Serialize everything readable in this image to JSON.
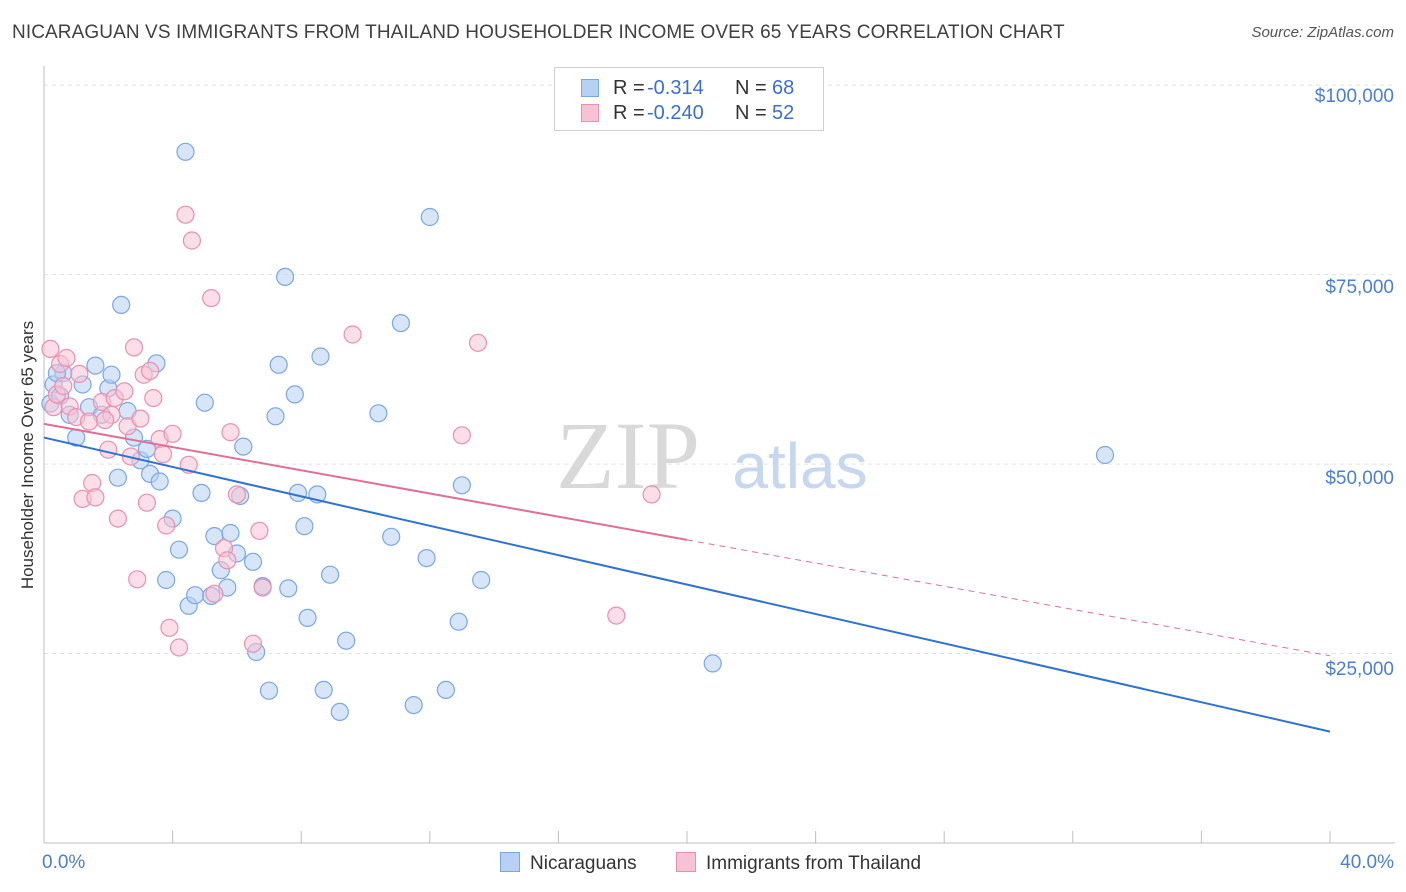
{
  "title": "NICARAGUAN VS IMMIGRANTS FROM THAILAND HOUSEHOLDER INCOME OVER 65 YEARS CORRELATION CHART",
  "source": "Source: ZipAtlas.com",
  "watermark": {
    "zip": "ZIP",
    "atlas": "atlas"
  },
  "stats": [
    {
      "r_label": "R =",
      "r_value": "-0.314",
      "n_label": "N =",
      "n_value": "68"
    },
    {
      "r_label": "R =",
      "r_value": "-0.240",
      "n_label": "N =",
      "n_value": "52"
    }
  ],
  "colors": {
    "blue_fill": "#b7d0f3",
    "blue_stroke": "#7aa7e6",
    "blue_line": "#2f73d1",
    "pink_fill": "#f7c3d4",
    "pink_stroke": "#ec8fae",
    "pink_line": "#e06f95",
    "tick_text": "#4a7fd4"
  },
  "chart_data": {
    "type": "scatter",
    "ylabel": "Householder Income Over 65 years",
    "x_tick_labels": [
      "0.0%",
      "40.0%"
    ],
    "y_tick_labels": [
      "$100,000",
      "$75,000",
      "$50,000",
      "$25,000"
    ],
    "y_ticks": [
      100000,
      75000,
      50000,
      25000
    ],
    "xlim": [
      0,
      40
    ],
    "ylim": [
      0,
      102000
    ],
    "grid": true,
    "legend_position": "bottom-center",
    "series": [
      {
        "name": "Nicaraguans",
        "color": "#7aa7e6",
        "trend": {
          "x": [
            0,
            40
          ],
          "y": [
            53500,
            14700
          ]
        },
        "points": [
          [
            0.2,
            58000
          ],
          [
            0.3,
            60500
          ],
          [
            0.5,
            59000
          ],
          [
            0.6,
            62000
          ],
          [
            0.8,
            56500
          ],
          [
            1.0,
            53500
          ],
          [
            1.2,
            60500
          ],
          [
            1.4,
            57500
          ],
          [
            1.6,
            63000
          ],
          [
            1.8,
            56500
          ],
          [
            2.0,
            60000
          ],
          [
            2.1,
            61800
          ],
          [
            2.3,
            48200
          ],
          [
            2.4,
            71000
          ],
          [
            2.6,
            57000
          ],
          [
            2.8,
            53500
          ],
          [
            3.0,
            50500
          ],
          [
            3.2,
            52000
          ],
          [
            3.3,
            48700
          ],
          [
            3.5,
            63300
          ],
          [
            3.6,
            47700
          ],
          [
            3.8,
            34700
          ],
          [
            4.0,
            42800
          ],
          [
            4.2,
            38700
          ],
          [
            4.4,
            91200
          ],
          [
            4.5,
            31300
          ],
          [
            4.7,
            32700
          ],
          [
            4.9,
            46200
          ],
          [
            5.0,
            58100
          ],
          [
            5.2,
            32600
          ],
          [
            5.3,
            40500
          ],
          [
            5.5,
            36000
          ],
          [
            5.7,
            33700
          ],
          [
            5.8,
            40900
          ],
          [
            6.0,
            38200
          ],
          [
            6.1,
            45800
          ],
          [
            6.2,
            52300
          ],
          [
            6.5,
            37100
          ],
          [
            6.6,
            25200
          ],
          [
            6.8,
            33900
          ],
          [
            7.0,
            20100
          ],
          [
            7.2,
            56300
          ],
          [
            7.3,
            63100
          ],
          [
            7.5,
            74700
          ],
          [
            7.6,
            33600
          ],
          [
            7.8,
            59200
          ],
          [
            7.9,
            46200
          ],
          [
            8.1,
            41800
          ],
          [
            8.2,
            29700
          ],
          [
            8.5,
            46000
          ],
          [
            8.6,
            64200
          ],
          [
            8.7,
            20200
          ],
          [
            8.9,
            35400
          ],
          [
            9.2,
            17300
          ],
          [
            9.4,
            26700
          ],
          [
            10.4,
            56700
          ],
          [
            10.8,
            40400
          ],
          [
            11.1,
            68600
          ],
          [
            11.5,
            18200
          ],
          [
            11.9,
            37600
          ],
          [
            12.0,
            82600
          ],
          [
            12.5,
            20200
          ],
          [
            12.9,
            29200
          ],
          [
            13.0,
            47200
          ],
          [
            13.6,
            34700
          ],
          [
            20.8,
            23700
          ],
          [
            33.0,
            51200
          ],
          [
            0.4,
            62000
          ]
        ]
      },
      {
        "name": "Immigrants from Thailand",
        "color": "#ec8fae",
        "trend": {
          "x": [
            0,
            20
          ],
          "y": [
            55300,
            40000
          ]
        },
        "trend_dashed": {
          "x": [
            20,
            40
          ],
          "y": [
            40000,
            24700
          ]
        },
        "points": [
          [
            0.2,
            65200
          ],
          [
            0.3,
            57500
          ],
          [
            0.4,
            59200
          ],
          [
            0.5,
            63200
          ],
          [
            0.7,
            64000
          ],
          [
            0.8,
            57600
          ],
          [
            1.0,
            56200
          ],
          [
            1.1,
            61900
          ],
          [
            1.2,
            45400
          ],
          [
            1.4,
            55600
          ],
          [
            1.5,
            47500
          ],
          [
            1.6,
            45600
          ],
          [
            1.8,
            58200
          ],
          [
            2.0,
            51900
          ],
          [
            2.1,
            56500
          ],
          [
            2.2,
            58700
          ],
          [
            2.3,
            42800
          ],
          [
            2.5,
            59600
          ],
          [
            2.6,
            55000
          ],
          [
            2.7,
            51000
          ],
          [
            2.8,
            65400
          ],
          [
            2.9,
            34800
          ],
          [
            3.0,
            56000
          ],
          [
            3.1,
            61800
          ],
          [
            3.2,
            44900
          ],
          [
            3.4,
            58700
          ],
          [
            3.6,
            53300
          ],
          [
            3.7,
            51300
          ],
          [
            3.8,
            41900
          ],
          [
            3.9,
            28400
          ],
          [
            4.0,
            54000
          ],
          [
            4.2,
            25800
          ],
          [
            4.4,
            82900
          ],
          [
            4.5,
            49900
          ],
          [
            4.6,
            79500
          ],
          [
            5.2,
            71900
          ],
          [
            5.3,
            32900
          ],
          [
            5.6,
            38900
          ],
          [
            5.7,
            37300
          ],
          [
            5.8,
            54200
          ],
          [
            6.0,
            46000
          ],
          [
            6.5,
            26300
          ],
          [
            6.7,
            41200
          ],
          [
            6.8,
            33700
          ],
          [
            9.6,
            67100
          ],
          [
            13.0,
            53800
          ],
          [
            13.5,
            66000
          ],
          [
            17.8,
            30000
          ],
          [
            18.9,
            46000
          ],
          [
            0.6,
            60300
          ],
          [
            1.9,
            55800
          ],
          [
            3.3,
            62300
          ]
        ]
      }
    ]
  }
}
